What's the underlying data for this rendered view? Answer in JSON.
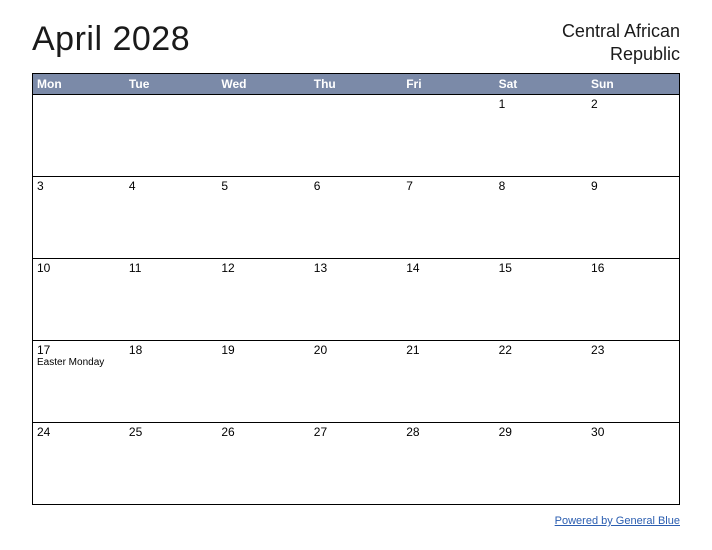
{
  "title": "April 2028",
  "region_line1": "Central African",
  "region_line2": "Republic",
  "header_bg": "#7b8aa8",
  "header_text_color": "#ffffff",
  "border_color": "#000000",
  "day_headers": [
    "Mon",
    "Tue",
    "Wed",
    "Thu",
    "Fri",
    "Sat",
    "Sun"
  ],
  "weeks": [
    [
      {
        "num": "",
        "event": ""
      },
      {
        "num": "",
        "event": ""
      },
      {
        "num": "",
        "event": ""
      },
      {
        "num": "",
        "event": ""
      },
      {
        "num": "",
        "event": ""
      },
      {
        "num": "1",
        "event": ""
      },
      {
        "num": "2",
        "event": ""
      }
    ],
    [
      {
        "num": "3",
        "event": ""
      },
      {
        "num": "4",
        "event": ""
      },
      {
        "num": "5",
        "event": ""
      },
      {
        "num": "6",
        "event": ""
      },
      {
        "num": "7",
        "event": ""
      },
      {
        "num": "8",
        "event": ""
      },
      {
        "num": "9",
        "event": ""
      }
    ],
    [
      {
        "num": "10",
        "event": ""
      },
      {
        "num": "11",
        "event": ""
      },
      {
        "num": "12",
        "event": ""
      },
      {
        "num": "13",
        "event": ""
      },
      {
        "num": "14",
        "event": ""
      },
      {
        "num": "15",
        "event": ""
      },
      {
        "num": "16",
        "event": ""
      }
    ],
    [
      {
        "num": "17",
        "event": "Easter Monday"
      },
      {
        "num": "18",
        "event": ""
      },
      {
        "num": "19",
        "event": ""
      },
      {
        "num": "20",
        "event": ""
      },
      {
        "num": "21",
        "event": ""
      },
      {
        "num": "22",
        "event": ""
      },
      {
        "num": "23",
        "event": ""
      }
    ],
    [
      {
        "num": "24",
        "event": ""
      },
      {
        "num": "25",
        "event": ""
      },
      {
        "num": "26",
        "event": ""
      },
      {
        "num": "27",
        "event": ""
      },
      {
        "num": "28",
        "event": ""
      },
      {
        "num": "29",
        "event": ""
      },
      {
        "num": "30",
        "event": ""
      }
    ]
  ],
  "footer_text": "Powered by General Blue",
  "footer_color": "#2a5db0"
}
